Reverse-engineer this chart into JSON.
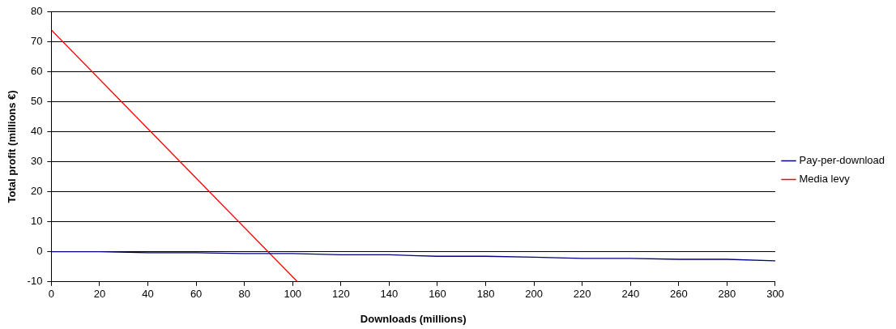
{
  "chart_data": {
    "type": "line",
    "xlabel": "Downloads (millions)",
    "ylabel": "Total profit (millions €)",
    "xlim": [
      0,
      300
    ],
    "xticks": [
      0,
      20,
      40,
      60,
      80,
      100,
      120,
      140,
      160,
      180,
      200,
      220,
      240,
      260,
      280,
      300
    ],
    "ylim": [
      -10,
      80
    ],
    "yticks": [
      -10,
      0,
      10,
      20,
      30,
      40,
      50,
      60,
      70,
      80
    ],
    "grid": "y",
    "legend": "right",
    "marker": "none",
    "line_style": "solid",
    "series": [
      {
        "name": "Pay-per-download",
        "color": "#000080",
        "x": [
          0,
          20,
          40,
          60,
          80,
          100,
          120,
          140,
          160,
          180,
          200,
          220,
          240,
          260,
          280,
          300
        ],
        "values": [
          0,
          0,
          -0.3,
          -0.3,
          -0.6,
          -0.6,
          -1,
          -1,
          -1.5,
          -1.5,
          -1.8,
          -2.2,
          -2.2,
          -2.5,
          -2.5,
          -3
        ]
      },
      {
        "name": "Media levy",
        "color": "#ff0000",
        "x": [
          0,
          102
        ],
        "values": [
          73.8,
          -10
        ]
      }
    ]
  }
}
